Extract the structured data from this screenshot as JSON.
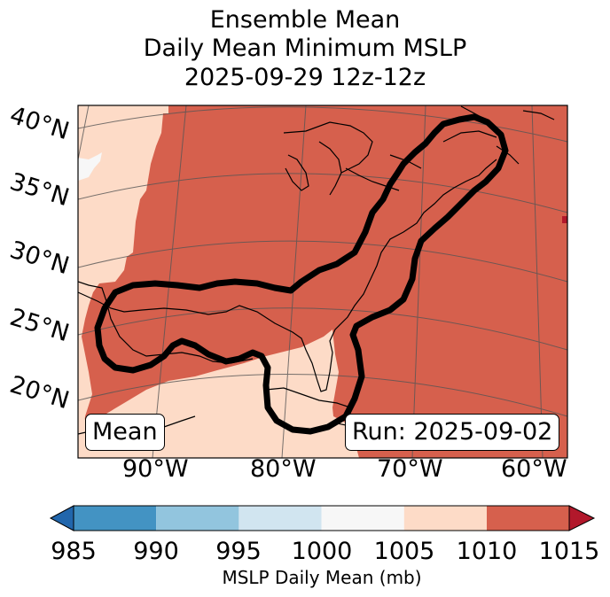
{
  "title": {
    "line1": "Ensemble Mean",
    "line2": "Daily Mean Minimum MSLP",
    "line3": "2025-09-29 12z-12z"
  },
  "map": {
    "lat_labels": [
      "40°N",
      "35°N",
      "30°N",
      "25°N",
      "20°N"
    ],
    "lon_labels": [
      "90°W",
      "80°W",
      "70°W",
      "60°W"
    ],
    "stat_box": "Mean",
    "run_box": "Run: 2025-09-02",
    "contour_description": "probability outline (black)"
  },
  "colorbar": {
    "label": "MSLP Daily Mean (mb)",
    "ticks": [
      "985",
      "990",
      "995",
      "1000",
      "1005",
      "1010",
      "1015"
    ],
    "colors": [
      "#4393c3",
      "#92c5de",
      "#d1e5f0",
      "#f7f7f7",
      "#fddbc7",
      "#d6604d"
    ],
    "under_color": "#2166ac",
    "over_color": "#b2182b"
  },
  "colors": {
    "high": "#d6604d",
    "mid": "#fddbc7",
    "low": "#f7f7f7",
    "contour": "#000000",
    "coast": "#000000",
    "grid": "#555555"
  }
}
